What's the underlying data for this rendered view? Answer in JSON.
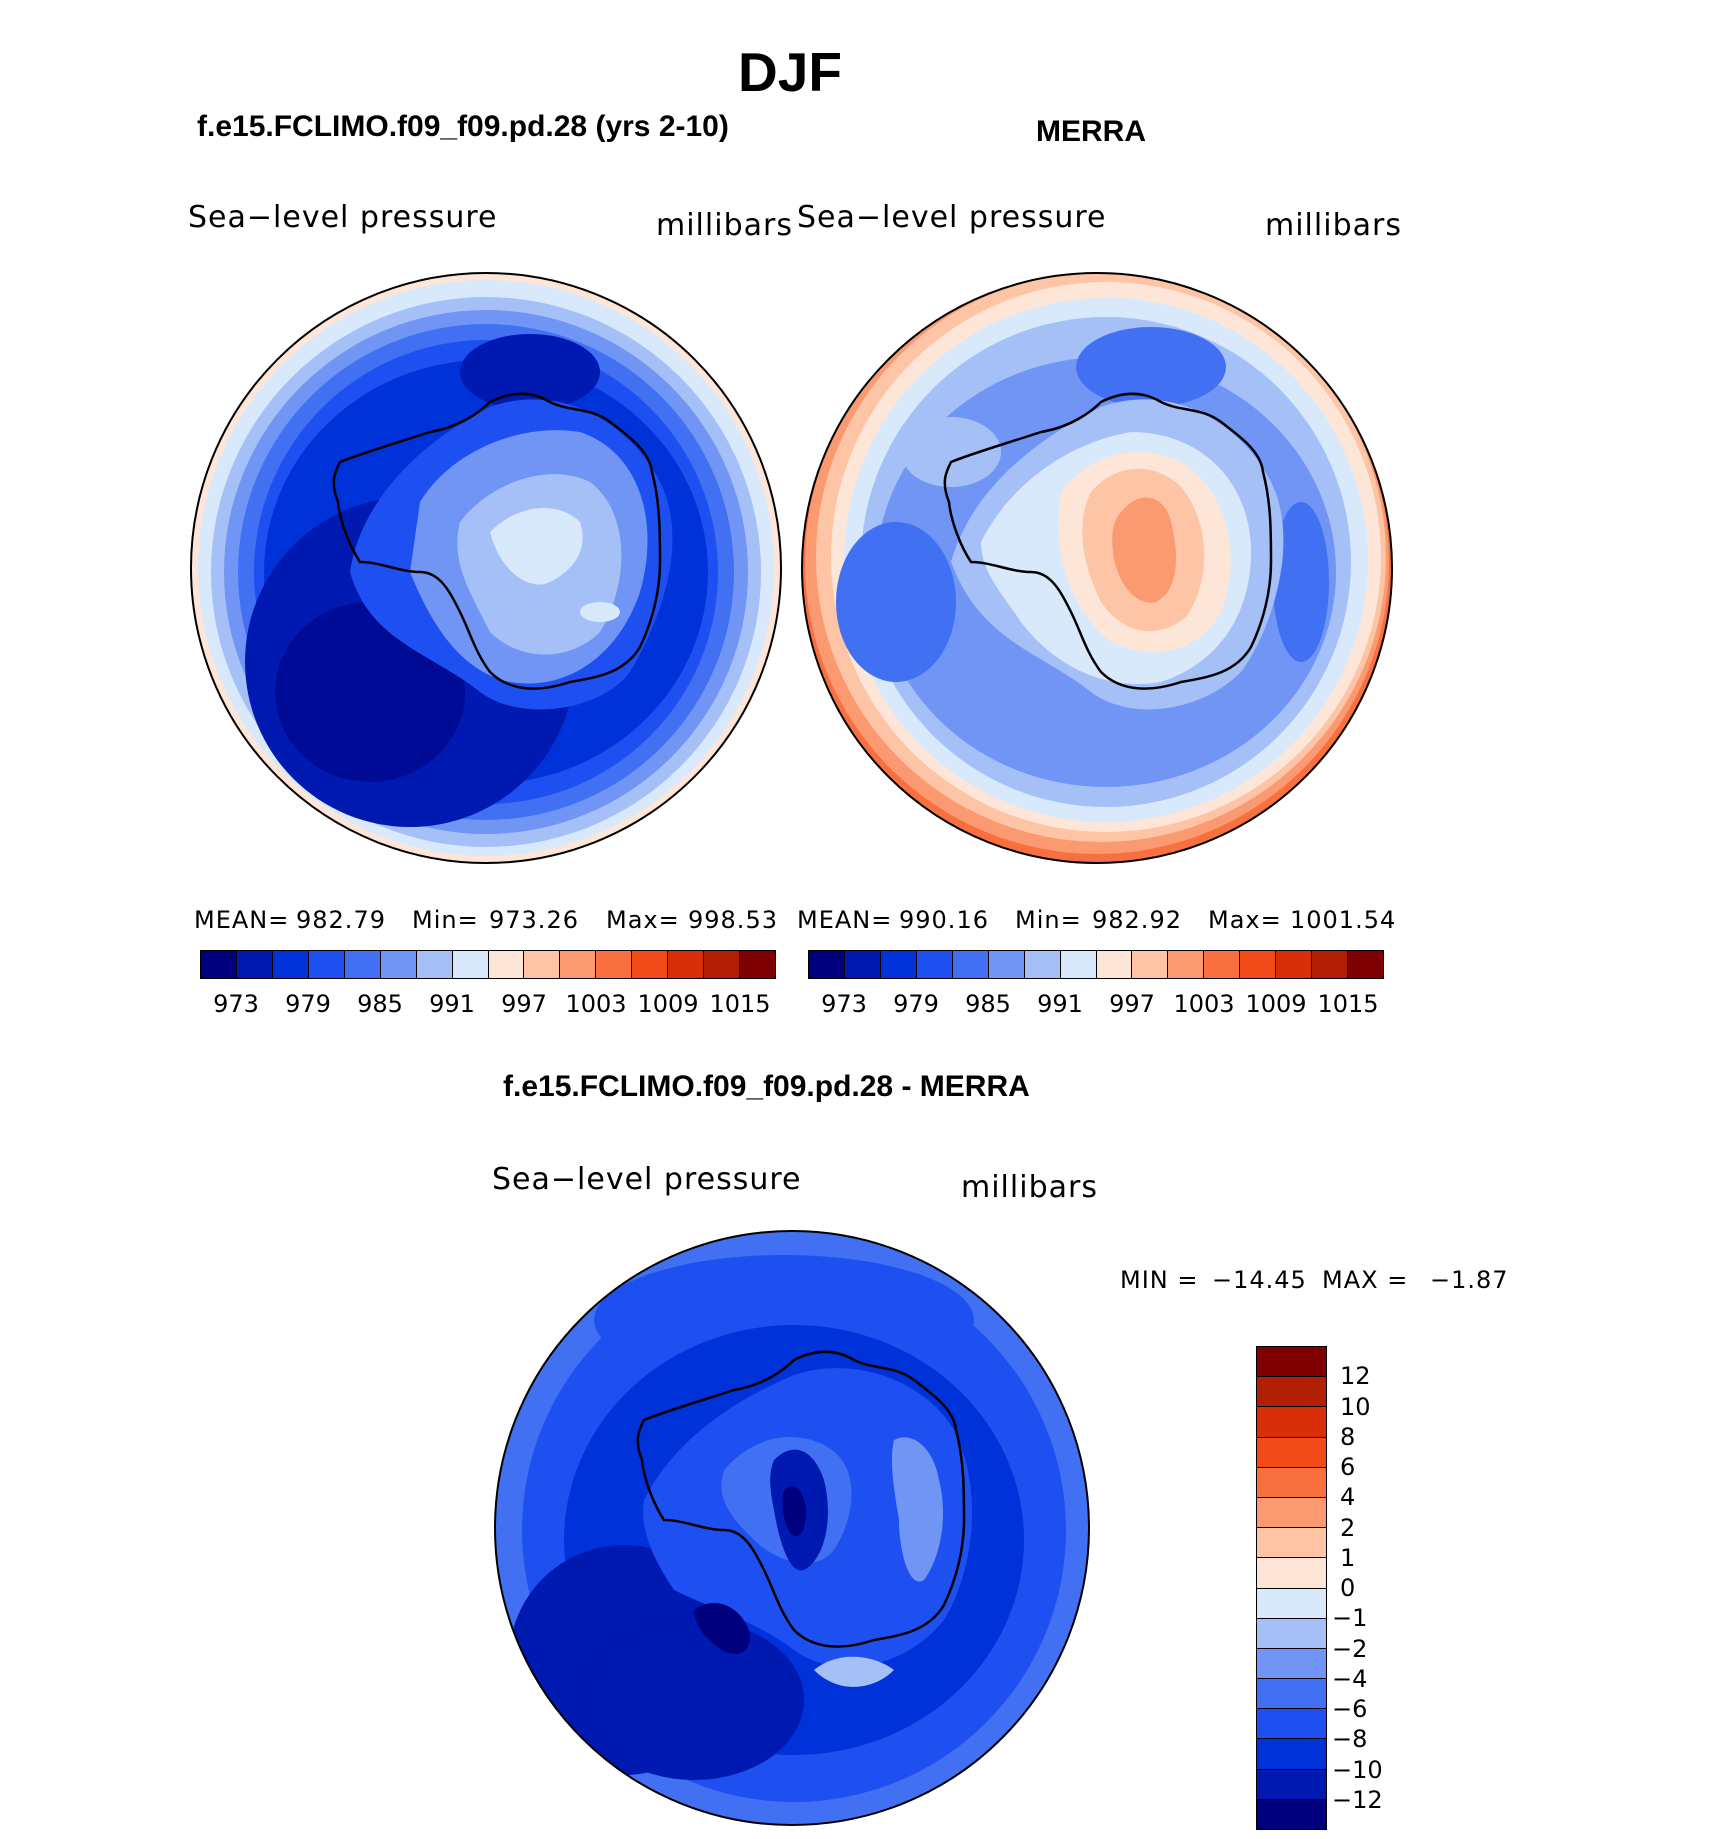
{
  "figure": {
    "title": "DJF"
  },
  "panels": [
    {
      "title": "f.e15.FCLIMO.f09_f09.pd.28 (yrs 2-10)",
      "variable": "Sea−level pressure",
      "units": "millibars",
      "stats": {
        "mean_label": "MEAN=",
        "mean": "982.79",
        "min_label": "Min=",
        "min": "973.26",
        "max_label": "Max=",
        "max": "998.53"
      }
    },
    {
      "title": "MERRA",
      "variable": "Sea−level pressure",
      "units": "millibars",
      "stats": {
        "mean_label": "MEAN=",
        "mean": "990.16",
        "min_label": "Min=",
        "min": "982.92",
        "max_label": "Max=",
        "max": "1001.54"
      }
    },
    {
      "title": "f.e15.FCLIMO.f09_f09.pd.28 - MERRA",
      "variable": "Sea−level pressure",
      "units": "millibars",
      "minmax": {
        "min_label": "MIN =",
        "min": "−14.45",
        "max_label": "MAX =",
        "max": "−1.87"
      }
    }
  ],
  "colorbar_top": {
    "colors": [
      "#00007f",
      "#0019b0",
      "#0032d9",
      "#1e4ff0",
      "#4170f2",
      "#7095f4",
      "#a5c0f7",
      "#d7e9fb",
      "#fde6d8",
      "#fdc4a6",
      "#fb9a70",
      "#f87040",
      "#f24a19",
      "#d92e0a",
      "#b21f05",
      "#7f0000"
    ],
    "tick_labels": [
      "973",
      "979",
      "985",
      "991",
      "997",
      "1003",
      "1009",
      "1015"
    ]
  },
  "colorbar_diff": {
    "colors": [
      "#7f0000",
      "#b21f05",
      "#d92e0a",
      "#f24a19",
      "#f87040",
      "#fb9a70",
      "#fdc4a6",
      "#fde6d8",
      "#d7e9fb",
      "#a5c0f7",
      "#7095f4",
      "#4170f2",
      "#1e4ff0",
      "#0032d9",
      "#0019b0",
      "#00007f"
    ],
    "tick_labels": [
      "12",
      "10",
      "8",
      "6",
      "4",
      "2",
      "1",
      "0",
      "−1",
      "−2",
      "−4",
      "−6",
      "−8",
      "−10",
      "−12"
    ]
  },
  "colors": {
    "coast": "#000000",
    "background": "#ffffff"
  },
  "maps": [
    {
      "region": "Antarctica",
      "projection": "south polar stereographic"
    },
    {
      "region": "Antarctica",
      "projection": "south polar stereographic"
    },
    {
      "region": "Antarctica",
      "projection": "south polar stereographic"
    }
  ]
}
